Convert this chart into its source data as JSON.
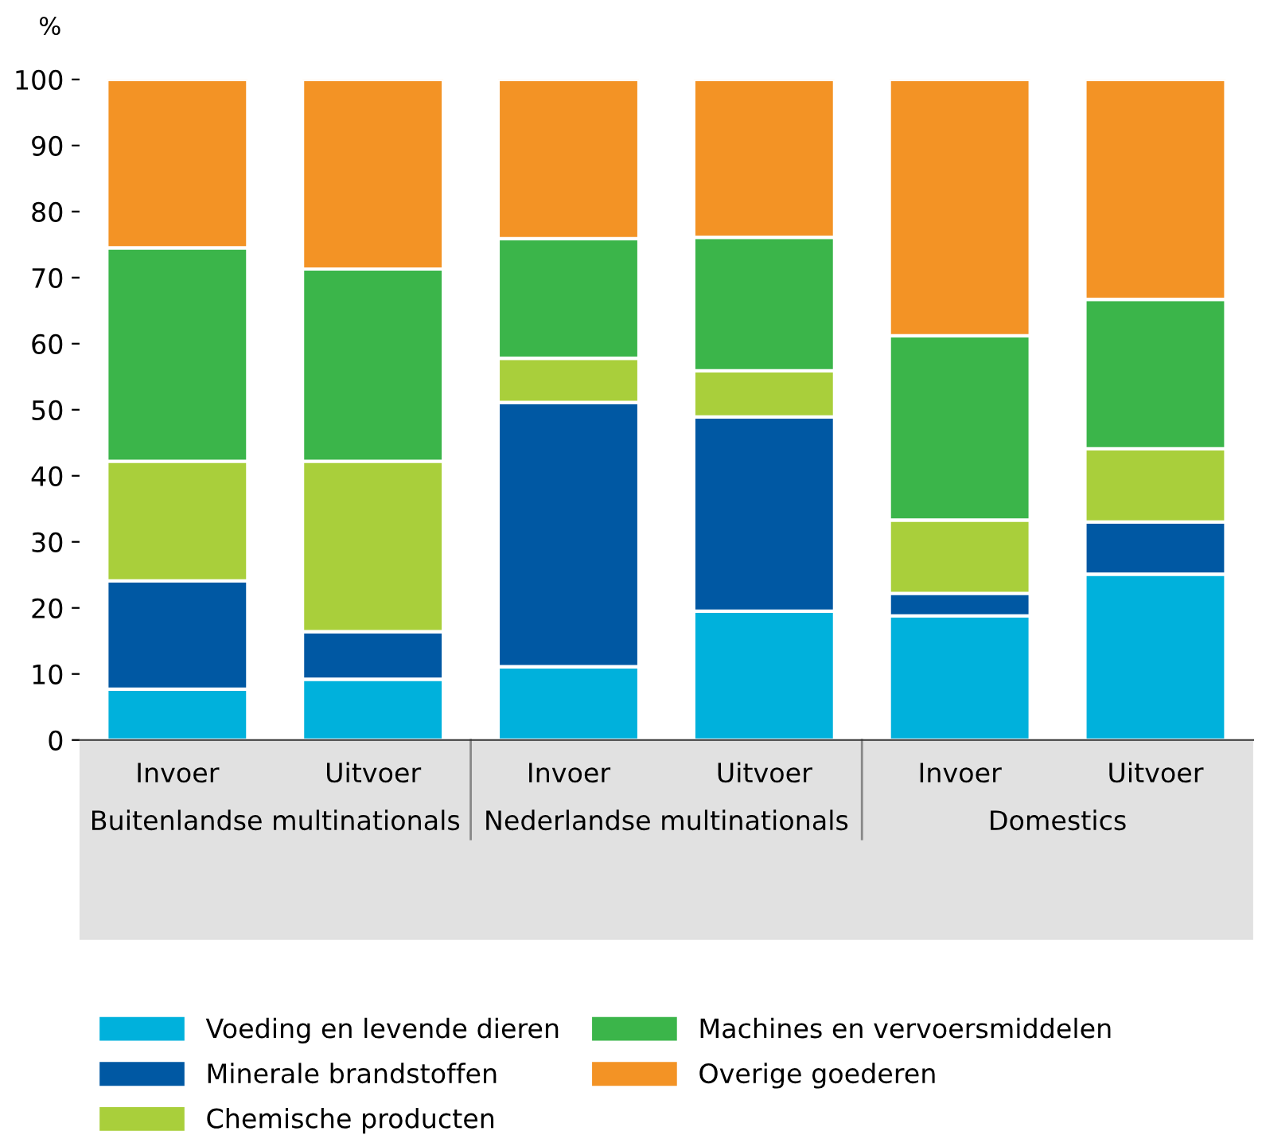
{
  "chart_data": {
    "type": "bar",
    "stacked": true,
    "ylabel": "%",
    "categories": [
      "Invoer",
      "Uitvoer",
      "Invoer",
      "Uitvoer",
      "Invoer",
      "Uitvoer"
    ],
    "annotations": [
      "Buitenlandse multinationals",
      "Nederlandse multinationals",
      "Domestics"
    ],
    "series": [
      {
        "name": "Voeding en levende dieren",
        "color": "#00b1dc",
        "values": [
          7.7,
          9.2,
          11.1,
          19.5,
          18.8,
          25.1
        ]
      },
      {
        "name": "Minerale brandstoffen",
        "color": "#0058a3",
        "values": [
          16.4,
          7.2,
          40.0,
          29.4,
          3.4,
          7.9
        ]
      },
      {
        "name": "Chemische producten",
        "color": "#a9cf3b",
        "values": [
          18.1,
          25.8,
          6.7,
          7.0,
          11.1,
          11.1
        ]
      },
      {
        "name": "Machines en vervoersmiddelen",
        "color": "#3bb54a",
        "values": [
          32.3,
          29.1,
          18.1,
          20.2,
          27.9,
          22.6
        ]
      },
      {
        "name": "Overige goederen",
        "color": "#f39325",
        "values": [
          25.5,
          28.7,
          24.1,
          23.9,
          38.8,
          33.3
        ]
      }
    ],
    "ylim": [
      0,
      100
    ],
    "yticks": [
      0,
      10,
      20,
      30,
      40,
      50,
      60,
      70,
      80,
      90,
      100
    ],
    "grid": false,
    "legend": "bottom"
  }
}
